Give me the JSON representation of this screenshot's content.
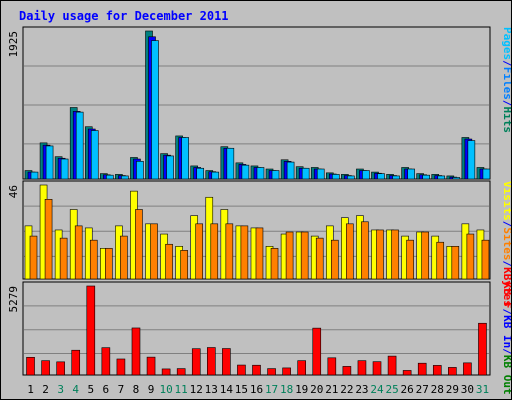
{
  "chart_data": {
    "title": "Daily usage for December 2011",
    "x": [
      "1",
      "2",
      "3",
      "4",
      "5",
      "6",
      "7",
      "8",
      "9",
      "10",
      "11",
      "12",
      "13",
      "14",
      "15",
      "16",
      "17",
      "18",
      "19",
      "20",
      "21",
      "22",
      "23",
      "24",
      "25",
      "26",
      "27",
      "28",
      "29",
      "30",
      "31"
    ],
    "weekend_days": [
      "3",
      "4",
      "10",
      "11",
      "17",
      "18",
      "24",
      "25",
      "31"
    ],
    "charts": [
      {
        "type": "bar",
        "ymax_label": "1925",
        "ymax": 1925,
        "legend": [
          {
            "text": "Pages",
            "color": "#00c0ff"
          },
          {
            "text": "/",
            "color": "#0000ff"
          },
          {
            "text": "Files",
            "color": "#0080ff"
          },
          {
            "text": "/",
            "color": "#0000ff"
          },
          {
            "text": "Hits",
            "color": "#00805a"
          }
        ],
        "series": [
          {
            "name": "Hits",
            "color": "#008080",
            "values": [
              110,
              470,
              290,
              930,
              680,
              70,
              60,
              280,
              1925,
              330,
              560,
              170,
              110,
              420,
              210,
              170,
              130,
              250,
              160,
              150,
              80,
              60,
              130,
              90,
              60,
              150,
              70,
              60,
              40,
              540,
              150
            ]
          },
          {
            "name": "Files",
            "color": "#0000ff",
            "values": [
              90,
              440,
              270,
              880,
              650,
              55,
              45,
              260,
              1850,
              310,
              540,
              150,
              95,
              400,
              190,
              150,
              110,
              230,
              140,
              130,
              65,
              45,
              110,
              75,
              45,
              130,
              55,
              45,
              25,
              520,
              130
            ]
          },
          {
            "name": "Pages",
            "color": "#00c0ff",
            "values": [
              90,
              430,
              260,
              870,
              630,
              50,
              40,
              230,
              1800,
              300,
              540,
              140,
              90,
              400,
              180,
              150,
              110,
              220,
              140,
              130,
              60,
              40,
              110,
              70,
              40,
              130,
              50,
              40,
              20,
              500,
              130
            ]
          }
        ]
      },
      {
        "type": "bar",
        "ymax_label": "46",
        "ymax": 46,
        "legend": [
          {
            "text": "Visits",
            "color": "#ffff00"
          },
          {
            "text": "/",
            "color": "#0000ff"
          },
          {
            "text": "Sites",
            "color": "#ff8000"
          },
          {
            "text": "/",
            "color": "#0000ff"
          },
          {
            "text": "KBytes",
            "color": "#ff0000"
          }
        ],
        "series": [
          {
            "name": "Visits",
            "color": "#ffff00",
            "values": [
              26,
              46,
              24,
              34,
              25,
              15,
              26,
              43,
              27,
              22,
              16,
              31,
              40,
              34,
              26,
              25,
              16,
              22,
              23,
              21,
              26,
              30,
              31,
              24,
              24,
              21,
              23,
              21,
              16,
              27,
              24
            ]
          },
          {
            "name": "Sites",
            "color": "#ff8000",
            "values": [
              21,
              39,
              20,
              26,
              19,
              15,
              21,
              34,
              27,
              17,
              14,
              27,
              27,
              27,
              26,
              25,
              15,
              23,
              23,
              20,
              19,
              27,
              28,
              24,
              24,
              19,
              23,
              18,
              16,
              22,
              19
            ]
          }
        ]
      },
      {
        "type": "bar",
        "ymax_label": "5279",
        "ymax": 5279,
        "legend": [
          {
            "text": "KB F",
            "color": "#ff0000"
          },
          {
            "text": "/",
            "color": "#0000ff"
          },
          {
            "text": "KB In",
            "color": "#0000ff"
          },
          {
            "text": "/",
            "color": "#0000ff"
          },
          {
            "text": "KB Out",
            "color": "#008000"
          }
        ],
        "series": [
          {
            "name": "KB F",
            "color": "#ff0000",
            "values": [
              1050,
              850,
              780,
              1470,
              5279,
              1620,
              950,
              2790,
              1060,
              360,
              380,
              1560,
              1630,
              1570,
              590,
              580,
              380,
              420,
              850,
              2780,
              1020,
              510,
              850,
              790,
              1120,
              270,
              700,
              570,
              450,
              720,
              3070
            ]
          }
        ]
      }
    ]
  }
}
